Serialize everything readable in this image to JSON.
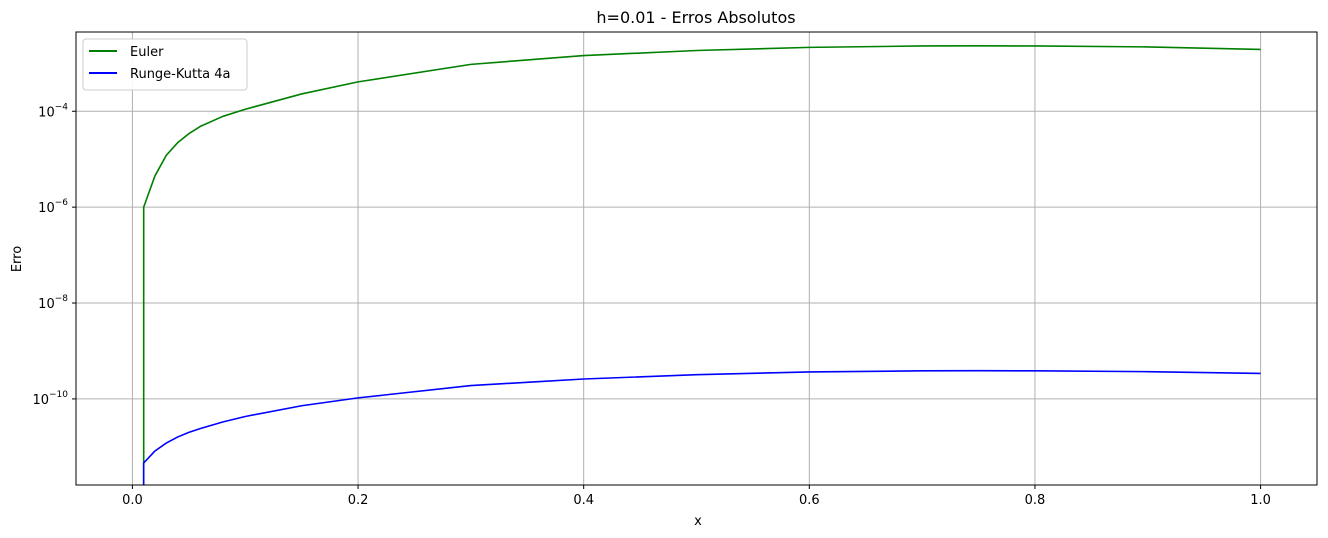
{
  "chart_data": {
    "type": "line",
    "title": "h=0.01 - Erros Absolutos",
    "xlabel": "x",
    "ylabel": "Erro",
    "yscale": "log",
    "xlim": [
      -0.05,
      1.05
    ],
    "ylim": [
      1.6e-12,
      0.0045
    ],
    "x_ticks": [
      {
        "value": 0.0,
        "label": "0.0"
      },
      {
        "value": 0.2,
        "label": "0.2"
      },
      {
        "value": 0.4,
        "label": "0.4"
      },
      {
        "value": 0.6,
        "label": "0.6"
      },
      {
        "value": 0.8,
        "label": "0.8"
      },
      {
        "value": 1.0,
        "label": "1.0"
      }
    ],
    "y_ticks": [
      {
        "value": 1e-10,
        "base": "10",
        "exp": "−10"
      },
      {
        "value": 1e-08,
        "base": "10",
        "exp": "−8"
      },
      {
        "value": 1e-06,
        "base": "10",
        "exp": "−6"
      },
      {
        "value": 0.0001,
        "base": "10",
        "exp": "−4"
      }
    ],
    "grid": true,
    "legend_position": "top-left",
    "series": [
      {
        "name": "Euler",
        "color": "#008000",
        "x": [
          0.01,
          0.01,
          0.02,
          0.03,
          0.04,
          0.05,
          0.06,
          0.08,
          0.1,
          0.15,
          0.2,
          0.3,
          0.4,
          0.5,
          0.6,
          0.7,
          0.75,
          0.8,
          0.9,
          1.0
        ],
        "y": [
          1e-12,
          1e-06,
          4.5e-06,
          1.2e-05,
          2.2e-05,
          3.4e-05,
          4.8e-05,
          7.8e-05,
          0.00011,
          0.00023,
          0.00041,
          0.00095,
          0.00145,
          0.00185,
          0.00215,
          0.0023,
          0.00232,
          0.0023,
          0.0022,
          0.00195
        ]
      },
      {
        "name": "Runge-Kutta 4a",
        "color": "#0000ff",
        "x": [
          0.01,
          0.01,
          0.02,
          0.03,
          0.04,
          0.05,
          0.06,
          0.08,
          0.1,
          0.15,
          0.2,
          0.3,
          0.4,
          0.5,
          0.6,
          0.7,
          0.75,
          0.8,
          0.9,
          1.0
        ],
        "y": [
          1e-13,
          4.6e-12,
          8.2e-12,
          1.2e-11,
          1.6e-11,
          2e-11,
          2.4e-11,
          3.3e-11,
          4.3e-11,
          7.2e-11,
          1.05e-10,
          1.9e-10,
          2.6e-10,
          3.2e-10,
          3.65e-10,
          3.85e-10,
          3.88e-10,
          3.85e-10,
          3.7e-10,
          3.4e-10
        ]
      }
    ]
  }
}
